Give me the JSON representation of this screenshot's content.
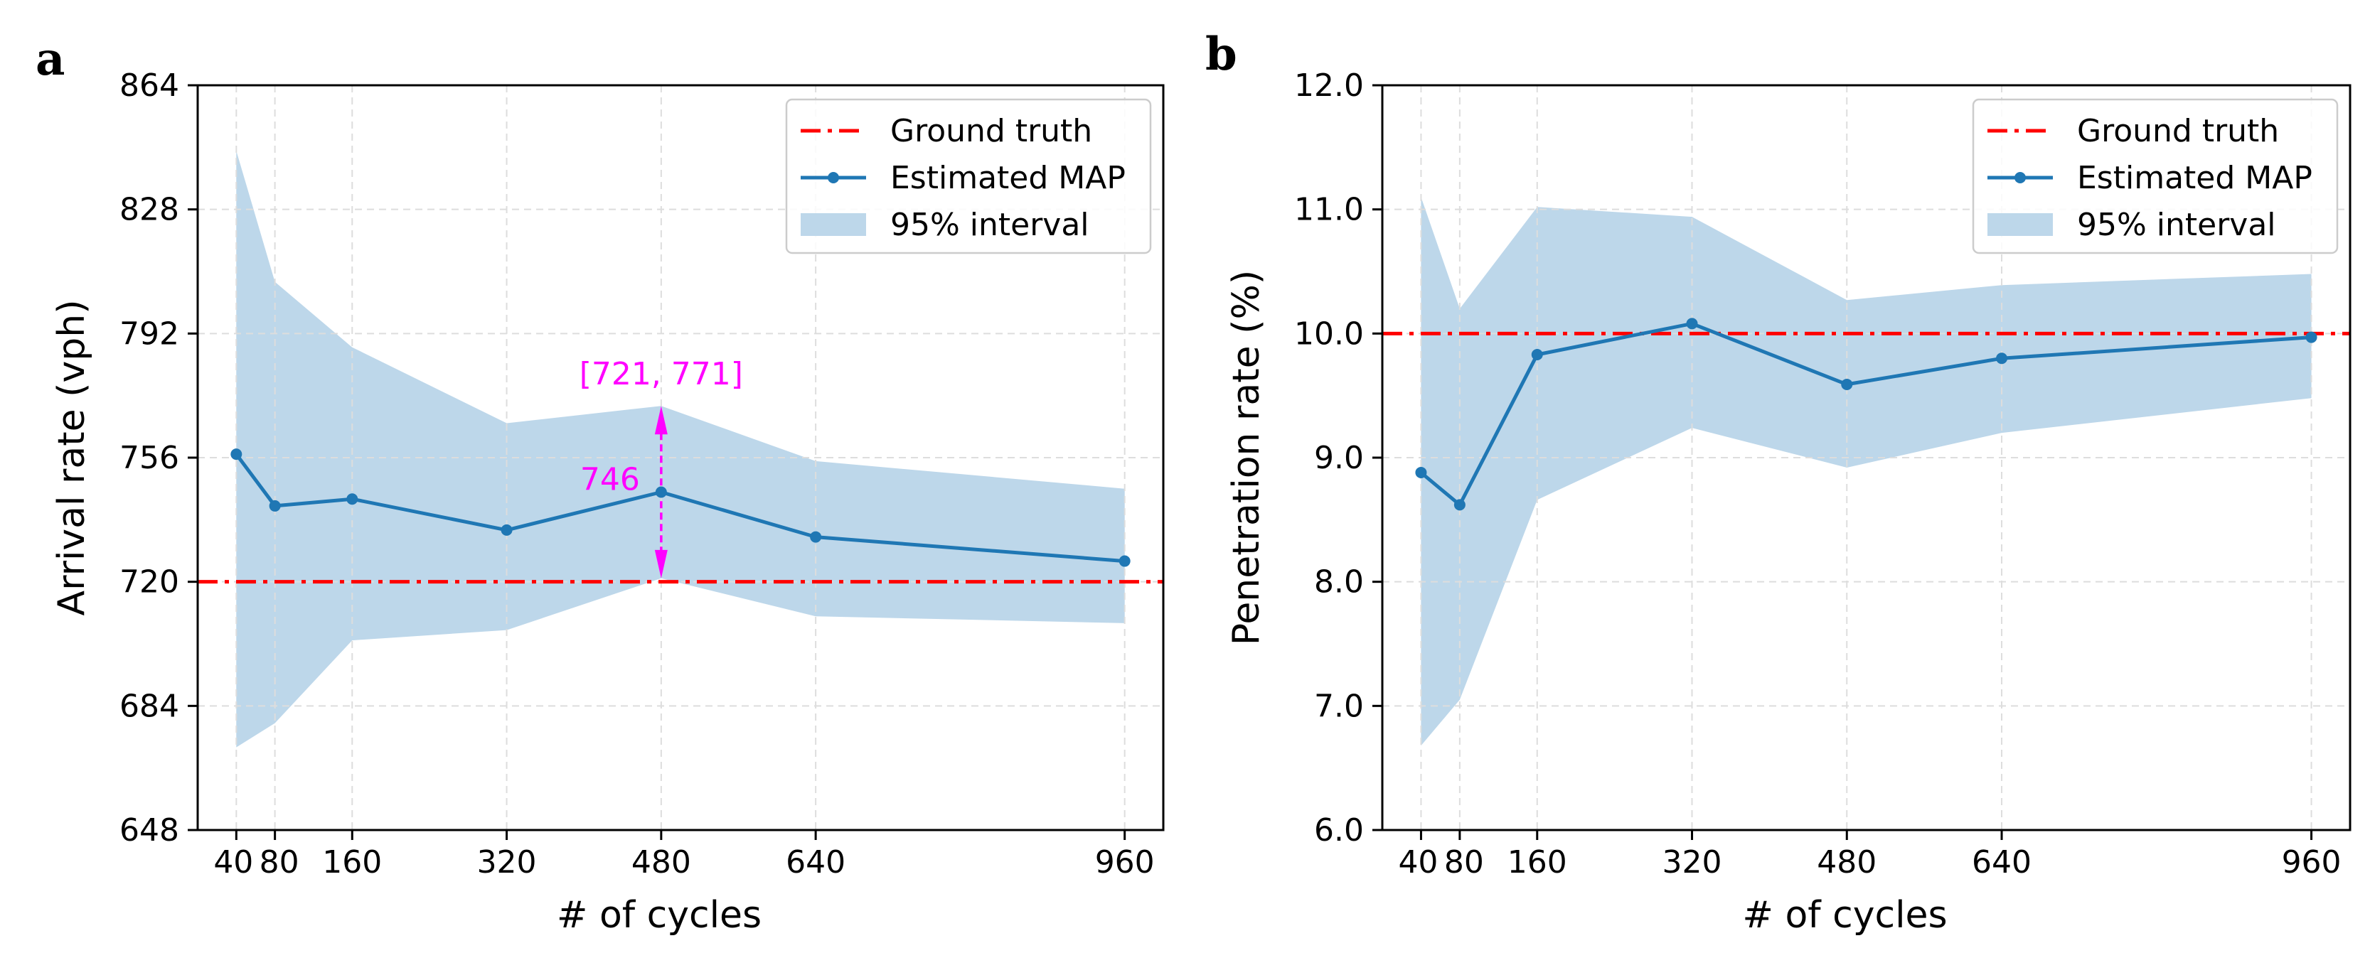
{
  "chart_data": [
    {
      "panel_label": "a",
      "type": "line",
      "xlabel": "# of cycles",
      "ylabel": "Arrival rate (vph)",
      "xlim": [
        0,
        1000
      ],
      "ylim": [
        648,
        864
      ],
      "xticks": [
        40,
        80,
        160,
        320,
        480,
        640,
        960
      ],
      "yticks": [
        648,
        684,
        720,
        756,
        792,
        828,
        864
      ],
      "grid": true,
      "legend_position": "top-right",
      "series": [
        {
          "name": "Ground truth",
          "kind": "hline",
          "style": "dash-dot",
          "color": "#ff0000",
          "value": 720
        },
        {
          "name": "Estimated MAP",
          "kind": "line-markers",
          "color": "#1f77b4",
          "x": [
            40,
            80,
            160,
            320,
            480,
            640,
            960
          ],
          "values": [
            757,
            742,
            744,
            735,
            746,
            733,
            726
          ]
        },
        {
          "name": "95% interval",
          "kind": "band",
          "color": "#bdd7ea",
          "x": [
            40,
            80,
            160,
            320,
            480,
            640,
            960
          ],
          "lower": [
            672,
            679,
            703,
            706,
            721,
            710,
            708
          ],
          "upper": [
            845,
            807,
            788,
            766,
            771,
            755,
            747
          ]
        }
      ],
      "annotations": [
        {
          "text": "[721, 771]",
          "color": "#ff00ff",
          "x": 480,
          "y": 771
        },
        {
          "text": "746",
          "color": "#ff00ff",
          "x": 480,
          "y": 746
        }
      ],
      "interval_arrow": {
        "x": 480,
        "from": 721,
        "to": 771,
        "color": "#ff00ff"
      }
    },
    {
      "panel_label": "b",
      "type": "line",
      "xlabel": "# of cycles",
      "ylabel": "Penetration rate (%)",
      "xlim": [
        0,
        1000
      ],
      "ylim": [
        6.0,
        12.0
      ],
      "xticks": [
        40,
        80,
        160,
        320,
        480,
        640,
        960
      ],
      "yticks": [
        6.0,
        7.0,
        8.0,
        9.0,
        10.0,
        11.0,
        12.0
      ],
      "grid": true,
      "legend_position": "top-right",
      "series": [
        {
          "name": "Ground truth",
          "kind": "hline",
          "style": "dash-dot",
          "color": "#ff0000",
          "value": 10.0
        },
        {
          "name": "Estimated MAP",
          "kind": "line-markers",
          "color": "#1f77b4",
          "x": [
            40,
            80,
            160,
            320,
            480,
            640,
            960
          ],
          "values": [
            8.88,
            8.62,
            9.83,
            10.08,
            9.59,
            9.8,
            9.97
          ]
        },
        {
          "name": "95% interval",
          "kind": "band",
          "color": "#bdd7ea",
          "x": [
            40,
            80,
            160,
            320,
            480,
            640,
            960
          ],
          "lower": [
            6.68,
            7.05,
            8.66,
            9.24,
            8.92,
            9.2,
            9.48
          ],
          "upper": [
            11.1,
            10.2,
            11.02,
            10.94,
            10.27,
            10.39,
            10.48
          ]
        }
      ],
      "annotations": []
    }
  ]
}
